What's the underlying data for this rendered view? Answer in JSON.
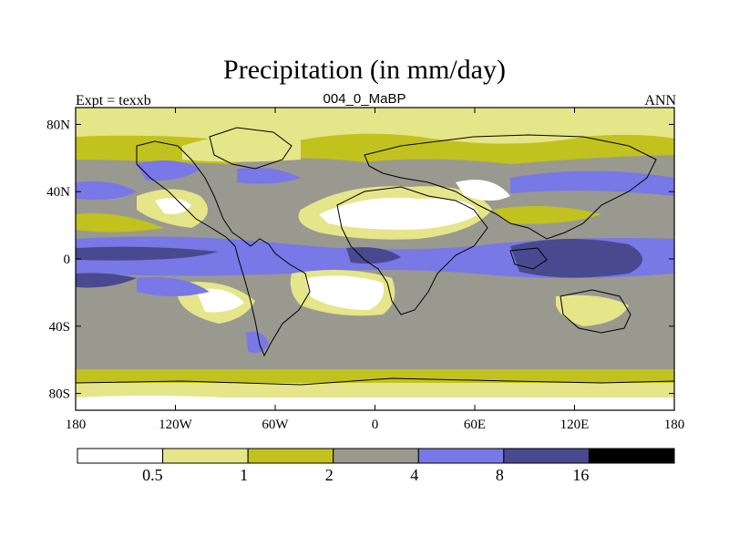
{
  "title": "Precipitation (in mm/day)",
  "left_label": "Expt = texxb",
  "center_label": "004_0_MaBP",
  "right_label": "ANN",
  "lat_ticks": [
    {
      "label": "80N",
      "value": 80
    },
    {
      "label": "40N",
      "value": 40
    },
    {
      "label": "0",
      "value": 0
    },
    {
      "label": "40S",
      "value": -40
    },
    {
      "label": "80S",
      "value": -80
    }
  ],
  "lon_ticks": [
    {
      "label": "180",
      "value": -180
    },
    {
      "label": "120W",
      "value": -120
    },
    {
      "label": "60W",
      "value": -60
    },
    {
      "label": "0",
      "value": 0
    },
    {
      "label": "60E",
      "value": 60
    },
    {
      "label": "120E",
      "value": 120
    },
    {
      "label": "180",
      "value": 180
    }
  ],
  "colorbar": {
    "colors": [
      "#ffffff",
      "#e5e58a",
      "#c2c21f",
      "#999990",
      "#7878e6",
      "#49498f",
      "#000000"
    ],
    "labels": [
      "0.5",
      "1",
      "2",
      "4",
      "8",
      "16"
    ]
  }
}
